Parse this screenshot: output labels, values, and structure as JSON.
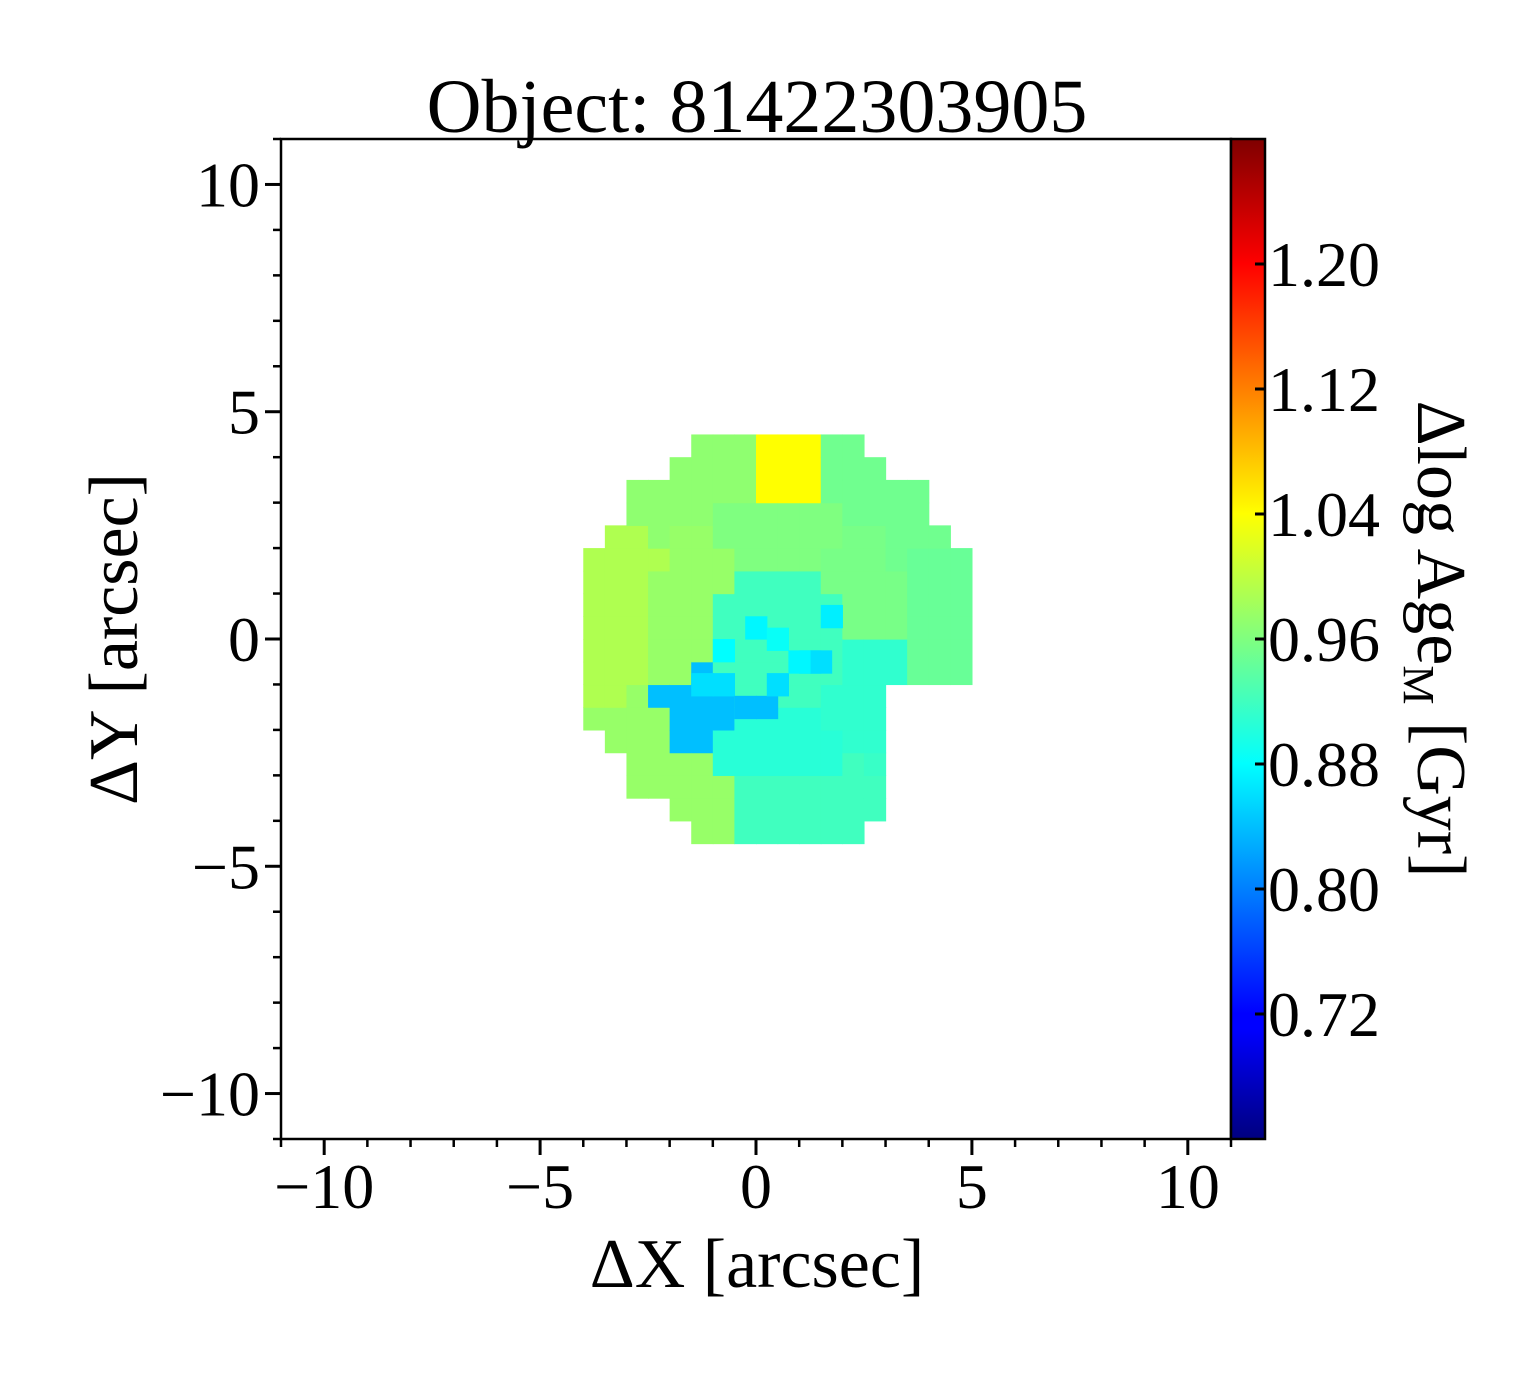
{
  "chart_data": {
    "type": "heatmap",
    "title": "Object: 81422303905",
    "xlabel": "ΔX [arcsec]",
    "ylabel": "ΔY [arcsec]",
    "colorbar_label_main": "Δlog Age",
    "colorbar_label_sub": "M",
    "colorbar_label_unit": " [Gyr]",
    "xlim": [
      -11,
      11
    ],
    "ylim": [
      -11,
      11
    ],
    "x_major_ticks": [
      -10,
      -5,
      0,
      5,
      10
    ],
    "y_major_ticks": [
      -10,
      -5,
      0,
      5,
      10
    ],
    "x_tick_labels": [
      "−10",
      "−5",
      "0",
      "5",
      "10"
    ],
    "y_tick_labels": [
      "−10",
      "−5",
      "0",
      "5",
      "10"
    ],
    "minor_tick_step": 1,
    "grid": false,
    "colormap": "jet",
    "color_range": [
      0.64,
      1.28
    ],
    "colorbar_ticks": [
      0.72,
      0.8,
      0.88,
      0.96,
      1.04,
      1.12,
      1.2
    ],
    "colorbar_tick_labels": [
      "0.72",
      "0.80",
      "0.88",
      "0.96",
      "1.04",
      "1.12",
      "1.20"
    ],
    "pixel_size": 0.5,
    "center": [
      0.5,
      0.0
    ],
    "rings": [
      {
        "r_min": 0,
        "r_max": 1.75,
        "sectors": [
          {
            "theta_min": 0,
            "theta_max": 360,
            "value": 0.92
          }
        ]
      },
      {
        "r_min": 1.75,
        "r_max": 3.2,
        "sectors": [
          {
            "theta_min": 0,
            "theta_max": 55,
            "value": 0.955
          },
          {
            "theta_min": 55,
            "theta_max": 125,
            "value": 0.96
          },
          {
            "theta_min": 125,
            "theta_max": 200,
            "value": 0.975
          },
          {
            "theta_min": 200,
            "theta_max": 235,
            "value": 0.84
          },
          {
            "theta_min": 235,
            "theta_max": 300,
            "value": 0.905
          },
          {
            "theta_min": 300,
            "theta_max": 360,
            "value": 0.91
          }
        ]
      },
      {
        "r_min": 3.2,
        "r_max": 4.6,
        "sectors": [
          {
            "theta_min": -25,
            "theta_max": 30,
            "value": 0.945
          },
          {
            "theta_min": 30,
            "theta_max": 75,
            "value": 0.95
          },
          {
            "theta_min": 75,
            "theta_max": 100,
            "value": 1.04
          },
          {
            "theta_min": 100,
            "theta_max": 145,
            "value": 0.97
          },
          {
            "theta_min": 145,
            "theta_max": 200,
            "value": 0.99
          },
          {
            "theta_min": 200,
            "theta_max": 255,
            "value": 0.975
          },
          {
            "theta_min": 255,
            "theta_max": 305,
            "value": 0.92
          },
          {
            "theta_min": 305,
            "theta_max": 335,
            "value": 0.915
          }
        ]
      }
    ],
    "masked_region": {
      "x_min": 2.8,
      "y_max": -1.0
    },
    "cells": [
      {
        "x": -1.5,
        "y": -1.25,
        "value": 0.86
      },
      {
        "x": -1.0,
        "y": -1.25,
        "value": 0.86
      },
      {
        "x": -0.5,
        "y": -1.75,
        "value": 0.84
      },
      {
        "x": 0.0,
        "y": -1.75,
        "value": 0.84
      },
      {
        "x": 0.25,
        "y": -1.25,
        "value": 0.86
      },
      {
        "x": 1.0,
        "y": -0.75,
        "value": 0.865
      },
      {
        "x": 1.25,
        "y": -0.75,
        "value": 0.86
      },
      {
        "x": 1.5,
        "y": 0.25,
        "value": 0.87
      },
      {
        "x": -1.0,
        "y": -0.5,
        "value": 0.88
      },
      {
        "x": -0.25,
        "y": 0.0,
        "value": 0.875
      },
      {
        "x": 0.25,
        "y": -0.25,
        "value": 0.885
      },
      {
        "x": 0.75,
        "y": -0.75,
        "value": 0.875
      }
    ]
  }
}
